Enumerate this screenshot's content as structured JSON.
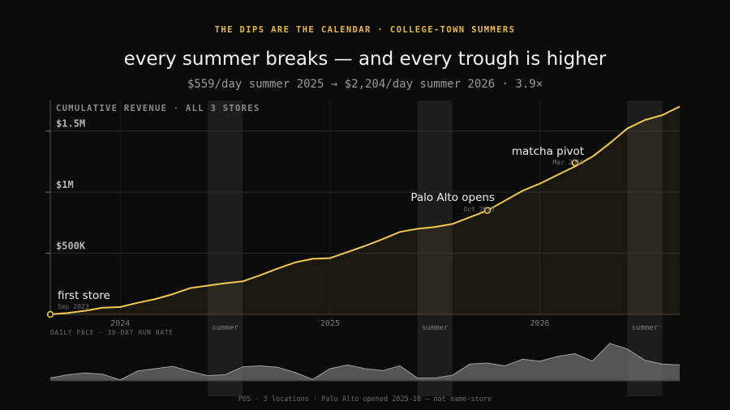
{
  "header": {
    "kicker": "THE DIPS ARE THE CALENDAR · COLLEGE-TOWN SUMMERS",
    "title": "every summer breaks — and every trough is higher",
    "subtitle": "$559/day summer 2025 → $2,204/day summer 2026 · 3.9×"
  },
  "footer": "POS · 3 locations · Palo Alto opened 2025-10 — not same-store",
  "colors": {
    "accent": "#f2c94c",
    "background": "#0b0b0b",
    "band": "#1f1f1f",
    "pace": "#6e6e6e"
  },
  "chart_data": [
    {
      "type": "line",
      "title": "CUMULATIVE REVENUE · ALL 3 STORES",
      "ylim": [
        0,
        1750000
      ],
      "yticks": [
        {
          "value": 500000,
          "label": "$500K"
        },
        {
          "value": 1000000,
          "label": "$1M"
        },
        {
          "value": 1500000,
          "label": "$1.5M"
        }
      ],
      "xlim": [
        "2023-09",
        "2026-09"
      ],
      "xticks": [
        {
          "date": "2024-01",
          "label": "2024"
        },
        {
          "date": "2025-01",
          "label": "2025"
        },
        {
          "date": "2026-01",
          "label": "2026"
        }
      ],
      "bands": [
        {
          "start": "2024-06",
          "end": "2024-08",
          "label": "summer"
        },
        {
          "start": "2025-06",
          "end": "2025-08",
          "label": "summer"
        },
        {
          "start": "2026-06",
          "end": "2026-08",
          "label": "summer"
        }
      ],
      "x": [
        "2023-09",
        "2023-10",
        "2023-11",
        "2023-12",
        "2024-01",
        "2024-02",
        "2024-03",
        "2024-04",
        "2024-05",
        "2024-06",
        "2024-07",
        "2024-08",
        "2024-09",
        "2024-10",
        "2024-11",
        "2024-12",
        "2025-01",
        "2025-02",
        "2025-03",
        "2025-04",
        "2025-05",
        "2025-06",
        "2025-07",
        "2025-08",
        "2025-09",
        "2025-10",
        "2025-11",
        "2025-12",
        "2026-01",
        "2026-02",
        "2026-03",
        "2026-04",
        "2026-05",
        "2026-06",
        "2026-07",
        "2026-08",
        "2026-09"
      ],
      "series": [
        {
          "values": [
            0,
            12000,
            30000,
            55000,
            60000,
            95000,
            125000,
            165000,
            215000,
            235000,
            255000,
            270000,
            320000,
            375000,
            425000,
            455000,
            460000,
            510000,
            560000,
            615000,
            675000,
            700000,
            715000,
            740000,
            795000,
            850000,
            930000,
            1010000,
            1070000,
            1140000,
            1210000,
            1290000,
            1400000,
            1520000,
            1590000,
            1630000,
            1700000
          ]
        }
      ],
      "annotations": [
        {
          "date": "2023-09",
          "value": 0,
          "label": "first store",
          "sublabel": "Sep 2023"
        },
        {
          "date": "2025-10",
          "value": 850000,
          "label": "Palo Alto opens",
          "sublabel": "Oct 2025"
        },
        {
          "date": "2026-03",
          "value": 1240000,
          "label": "matcha pivot",
          "sublabel": "Mar 2026"
        }
      ]
    },
    {
      "type": "area",
      "title": "DAILY PACE · 30-DAY RUN RATE",
      "xlim": [
        "2023-09",
        "2026-09"
      ],
      "x": [
        "2023-09",
        "2023-10",
        "2023-11",
        "2023-12",
        "2024-01",
        "2024-02",
        "2024-03",
        "2024-04",
        "2024-05",
        "2024-06",
        "2024-07",
        "2024-08",
        "2024-09",
        "2024-10",
        "2024-11",
        "2024-12",
        "2025-01",
        "2025-02",
        "2025-03",
        "2025-04",
        "2025-05",
        "2025-06",
        "2025-07",
        "2025-08",
        "2025-09",
        "2025-10",
        "2025-11",
        "2025-12",
        "2026-01",
        "2026-02",
        "2026-03",
        "2026-04",
        "2026-05",
        "2026-06",
        "2026-07",
        "2026-08",
        "2026-09"
      ],
      "series": [
        {
          "values": [
            300,
            650,
            850,
            700,
            100,
            1050,
            1300,
            1550,
            1000,
            550,
            650,
            1500,
            1600,
            1450,
            900,
            150,
            1300,
            1700,
            1300,
            1100,
            1600,
            300,
            300,
            600,
            1800,
            1900,
            1600,
            2300,
            2100,
            2600,
            2900,
            2100,
            4000,
            3400,
            2200,
            1800,
            1700
          ]
        }
      ],
      "ylim": [
        0,
        4500
      ]
    }
  ]
}
